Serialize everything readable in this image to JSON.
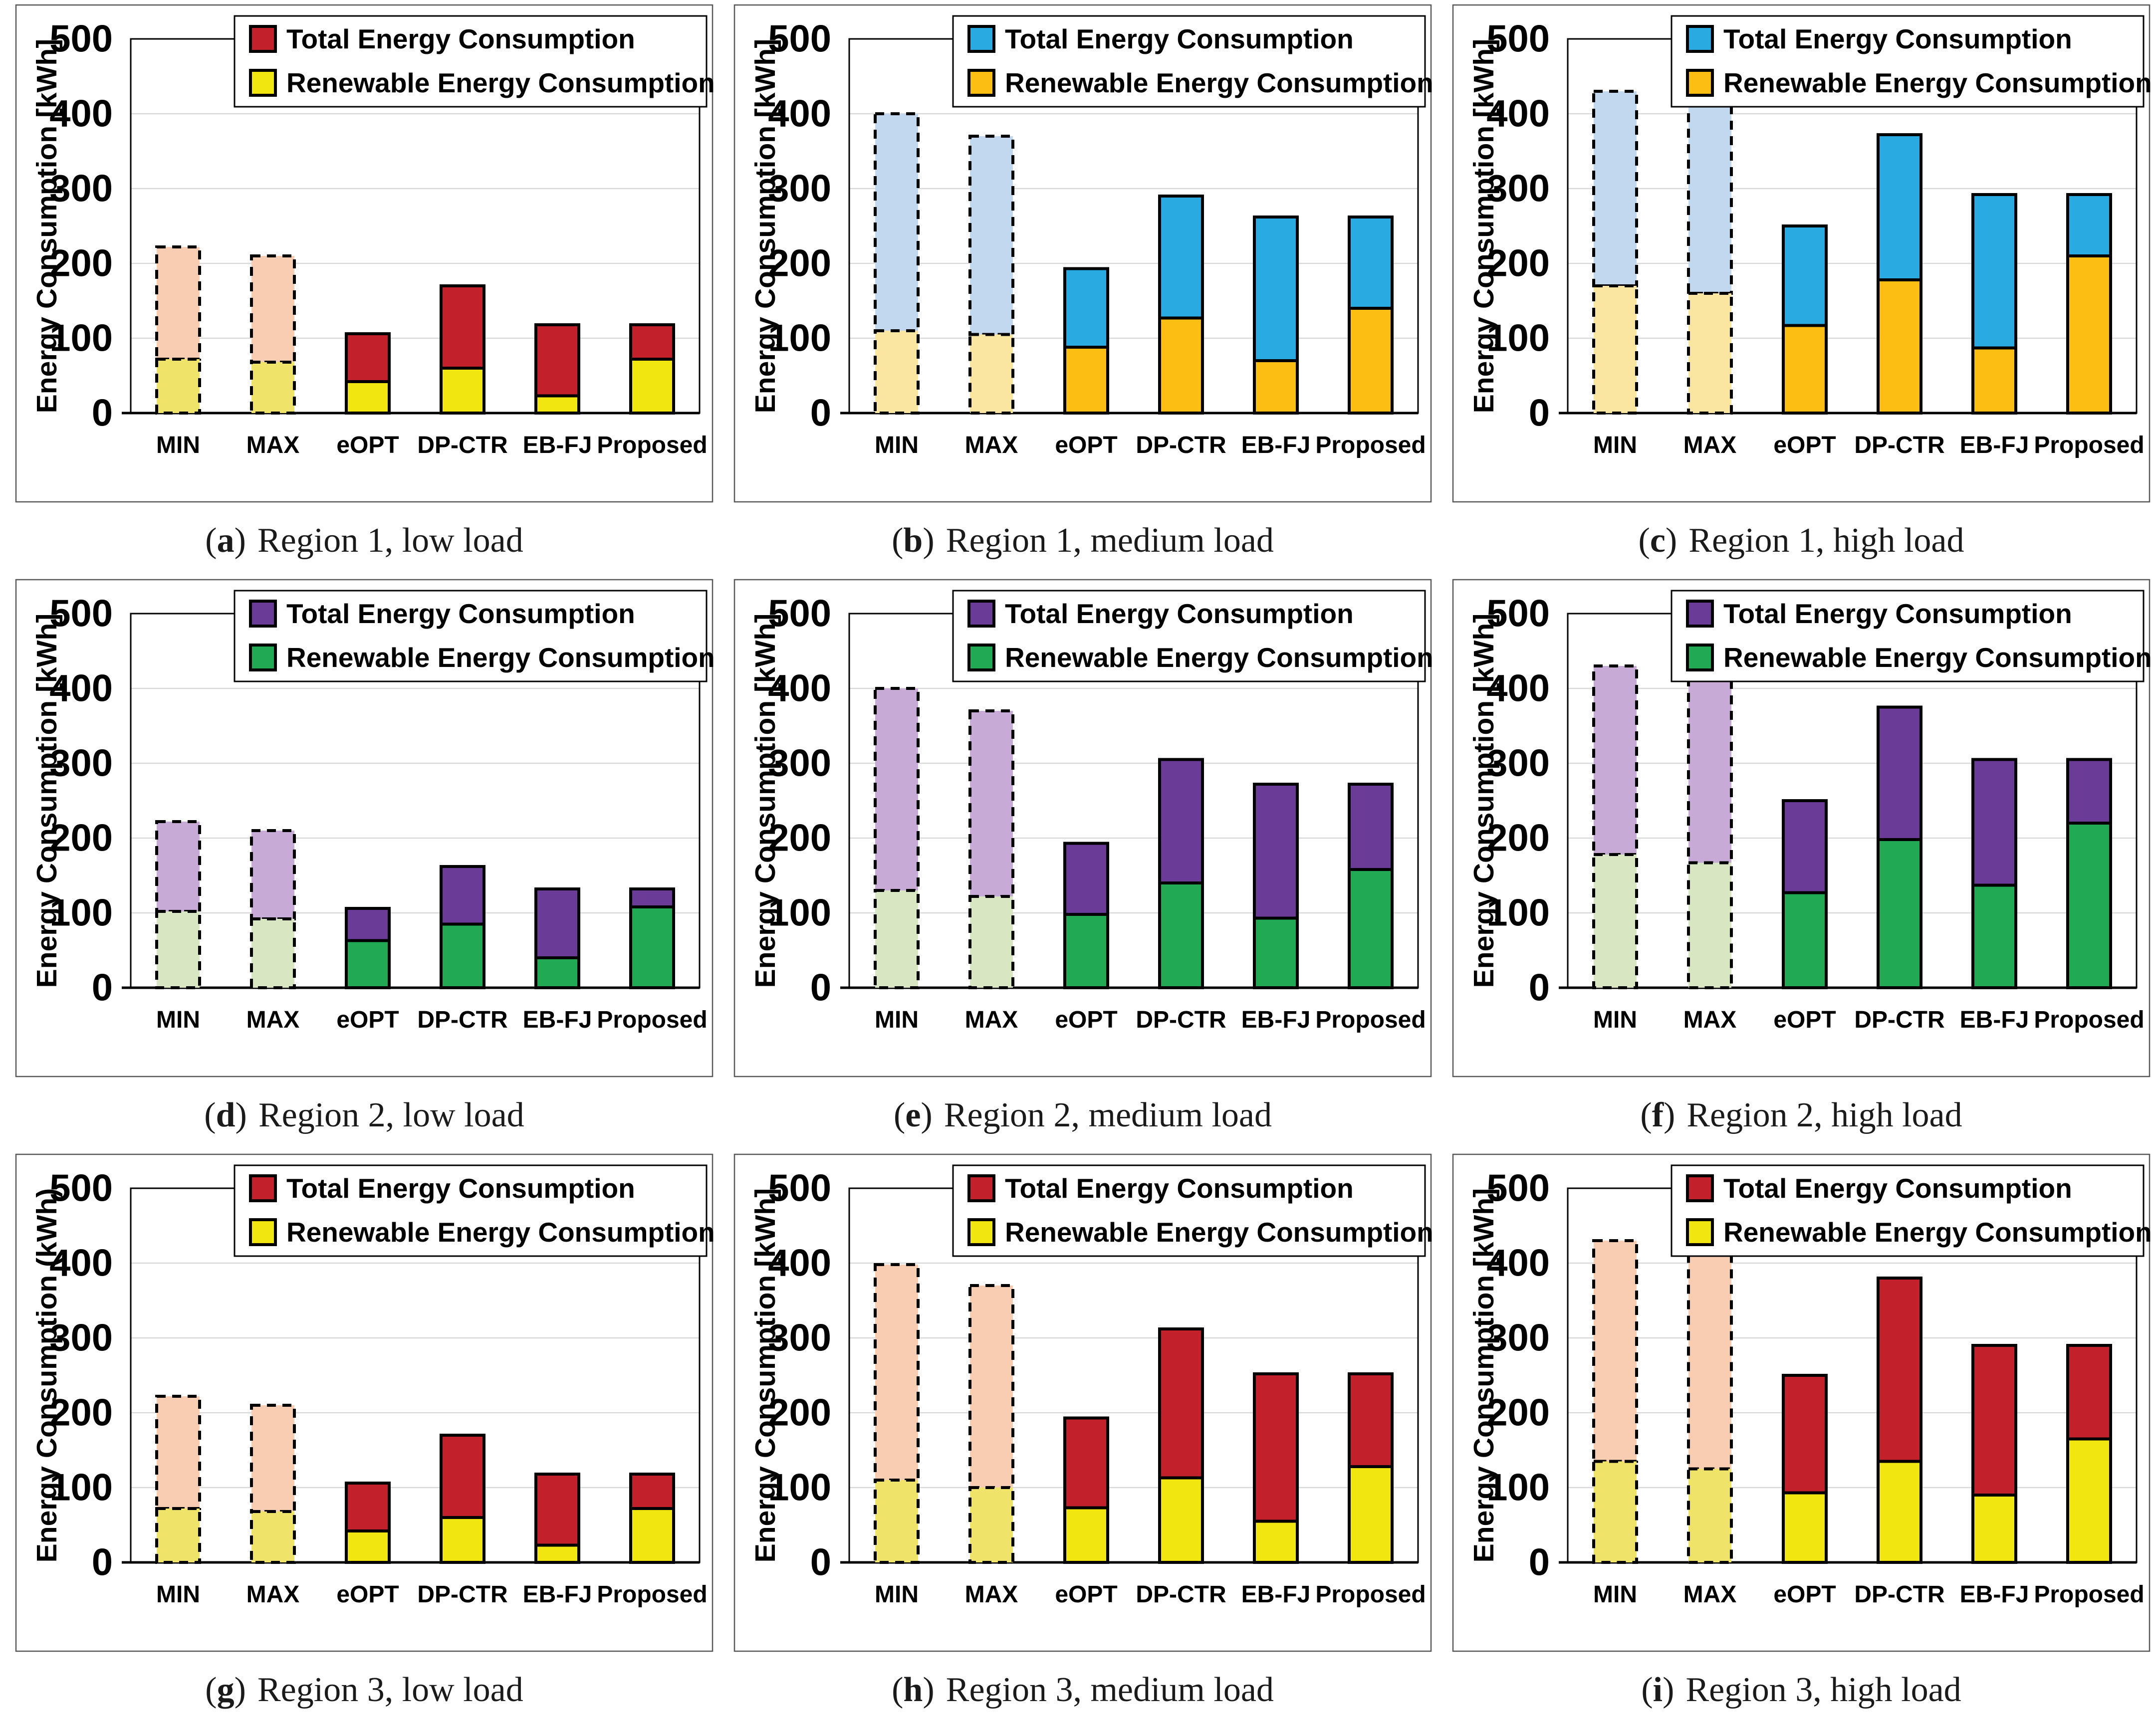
{
  "figure": {
    "description": "Energy consumption comparison across three regions and three load levels",
    "x_axis_categories": [
      "MIN",
      "MAX",
      "eOPT",
      "DP-CTR",
      "EB-FJ",
      "Proposed"
    ],
    "legend_labels": [
      "Total Energy Consumption",
      "Renewable Energy Consumption"
    ],
    "grid_color": "#D9D9D9"
  },
  "chart_data": [
    {
      "type": "bar",
      "stacked": true,
      "id": "a",
      "caption": {
        "pre": "(",
        "letter": "a",
        "post": ")",
        "label": "Region 1, low load"
      },
      "ylabel": "Energy Consumption [kWh]",
      "ylim": [
        0,
        500
      ],
      "yticks": [
        0,
        100,
        200,
        300,
        400,
        500
      ],
      "categories": [
        "MIN",
        "MAX",
        "eOPT",
        "DP-CTR",
        "EB-FJ",
        "Proposed"
      ],
      "dashed": [
        true,
        true,
        false,
        false,
        false,
        false
      ],
      "legend": [
        "Total Energy Consumption",
        "Renewable Energy Consumption"
      ],
      "legend_position": "top-right-inside",
      "grid": "horizontal",
      "colors": {
        "total": "#C2212B",
        "renewable": "#F2E611",
        "total_faded": "#F8CDB2",
        "renewable_faded": "#F0E36A"
      },
      "series": [
        {
          "name": "Total Energy Consumption",
          "values": [
            222,
            210,
            106,
            170,
            118,
            118
          ]
        },
        {
          "name": "Renewable Energy Consumption",
          "values": [
            72,
            68,
            42,
            60,
            23,
            72
          ]
        }
      ]
    },
    {
      "type": "bar",
      "stacked": true,
      "id": "b",
      "caption": {
        "pre": "(",
        "letter": "b",
        "post": ")",
        "label": "Region 1, medium load"
      },
      "ylabel": "Energy Consumption [kWh]",
      "ylim": [
        0,
        500
      ],
      "yticks": [
        0,
        100,
        200,
        300,
        400,
        500
      ],
      "categories": [
        "MIN",
        "MAX",
        "eOPT",
        "DP-CTR",
        "EB-FJ",
        "Proposed"
      ],
      "dashed": [
        true,
        true,
        false,
        false,
        false,
        false
      ],
      "legend": [
        "Total Energy Consumption",
        "Renewable Energy Consumption"
      ],
      "legend_position": "top-right-inside",
      "grid": "horizontal",
      "colors": {
        "total": "#29ABE2",
        "renewable": "#FDBE14",
        "total_faded": "#C2D8EF",
        "renewable_faded": "#FAE5A1"
      },
      "series": [
        {
          "name": "Total Energy Consumption",
          "values": [
            400,
            370,
            193,
            290,
            262,
            262
          ]
        },
        {
          "name": "Renewable Energy Consumption",
          "values": [
            110,
            105,
            88,
            127,
            70,
            140
          ]
        }
      ]
    },
    {
      "type": "bar",
      "stacked": true,
      "id": "c",
      "caption": {
        "pre": "(",
        "letter": "c",
        "post": ")",
        "label": "Region 1, high load"
      },
      "ylabel": "Energy Consumption [kWh]",
      "ylim": [
        0,
        500
      ],
      "yticks": [
        0,
        100,
        200,
        300,
        400,
        500
      ],
      "categories": [
        "MIN",
        "MAX",
        "eOPT",
        "DP-CTR",
        "EB-FJ",
        "Proposed"
      ],
      "dashed": [
        true,
        true,
        false,
        false,
        false,
        false
      ],
      "legend": [
        "Total Energy Consumption",
        "Renewable Energy Consumption"
      ],
      "legend_position": "top-right-inside",
      "grid": "horizontal",
      "colors": {
        "total": "#29ABE2",
        "renewable": "#FDBE14",
        "total_faded": "#C2D8EF",
        "renewable_faded": "#FAE5A1"
      },
      "series": [
        {
          "name": "Total Energy Consumption",
          "values": [
            430,
            416,
            250,
            372,
            292,
            292
          ]
        },
        {
          "name": "Renewable Energy Consumption",
          "values": [
            170,
            160,
            117,
            178,
            87,
            210
          ]
        }
      ]
    },
    {
      "type": "bar",
      "stacked": true,
      "id": "d",
      "caption": {
        "pre": "(",
        "letter": "d",
        "post": ")",
        "label": "Region 2, low load"
      },
      "ylabel": "Energy Consumption [kWh]",
      "ylim": [
        0,
        500
      ],
      "yticks": [
        0,
        100,
        200,
        300,
        400,
        500
      ],
      "categories": [
        "MIN",
        "MAX",
        "eOPT",
        "DP-CTR",
        "EB-FJ",
        "Proposed"
      ],
      "dashed": [
        true,
        true,
        false,
        false,
        false,
        false
      ],
      "legend": [
        "Total Energy Consumption",
        "Renewable Energy Consumption"
      ],
      "legend_position": "top-right-inside",
      "grid": "horizontal",
      "colors": {
        "total": "#6A3C98",
        "renewable": "#21A953",
        "total_faded": "#C7AAD6",
        "renewable_faded": "#D8E7C1"
      },
      "series": [
        {
          "name": "Total Energy Consumption",
          "values": [
            222,
            210,
            106,
            162,
            132,
            132
          ]
        },
        {
          "name": "Renewable Energy Consumption",
          "values": [
            102,
            92,
            63,
            85,
            40,
            108
          ]
        }
      ]
    },
    {
      "type": "bar",
      "stacked": true,
      "id": "e",
      "caption": {
        "pre": "(",
        "letter": "e",
        "post": ")",
        "label": "Region 2, medium load"
      },
      "ylabel": "Energy Consumption [kWh]",
      "ylim": [
        0,
        500
      ],
      "yticks": [
        0,
        100,
        200,
        300,
        400,
        500
      ],
      "categories": [
        "MIN",
        "MAX",
        "eOPT",
        "DP-CTR",
        "EB-FJ",
        "Proposed"
      ],
      "dashed": [
        true,
        true,
        false,
        false,
        false,
        false
      ],
      "legend": [
        "Total Energy Consumption",
        "Renewable Energy Consumption"
      ],
      "legend_position": "top-right-inside",
      "grid": "horizontal",
      "colors": {
        "total": "#6A3C98",
        "renewable": "#21A953",
        "total_faded": "#C7AAD6",
        "renewable_faded": "#D8E7C1"
      },
      "series": [
        {
          "name": "Total Energy Consumption",
          "values": [
            400,
            370,
            193,
            305,
            272,
            272
          ]
        },
        {
          "name": "Renewable Energy Consumption",
          "values": [
            130,
            122,
            98,
            140,
            93,
            158
          ]
        }
      ]
    },
    {
      "type": "bar",
      "stacked": true,
      "id": "f",
      "caption": {
        "pre": "(",
        "letter": "f",
        "post": ")",
        "label": "Region 2, high load"
      },
      "ylabel": "Energy Consumption [kWh]",
      "ylim": [
        0,
        500
      ],
      "yticks": [
        0,
        100,
        200,
        300,
        400,
        500
      ],
      "categories": [
        "MIN",
        "MAX",
        "eOPT",
        "DP-CTR",
        "EB-FJ",
        "Proposed"
      ],
      "dashed": [
        true,
        true,
        false,
        false,
        false,
        false
      ],
      "legend": [
        "Total Energy Consumption",
        "Renewable Energy Consumption"
      ],
      "legend_position": "top-right-inside",
      "grid": "horizontal",
      "colors": {
        "total": "#6A3C98",
        "renewable": "#21A953",
        "total_faded": "#C7AAD6",
        "renewable_faded": "#D8E7C1"
      },
      "series": [
        {
          "name": "Total Energy Consumption",
          "values": [
            430,
            416,
            250,
            375,
            305,
            305
          ]
        },
        {
          "name": "Renewable Energy Consumption",
          "values": [
            178,
            167,
            127,
            198,
            137,
            220
          ]
        }
      ]
    },
    {
      "type": "bar",
      "stacked": true,
      "id": "g",
      "caption": {
        "pre": "(",
        "letter": "g",
        "post": ")",
        "label": "Region 3, low load"
      },
      "ylabel": "Energy Consumption (kWh)",
      "ylim": [
        0,
        500
      ],
      "yticks": [
        0,
        100,
        200,
        300,
        400,
        500
      ],
      "categories": [
        "MIN",
        "MAX",
        "eOPT",
        "DP-CTR",
        "EB-FJ",
        "Proposed"
      ],
      "dashed": [
        true,
        true,
        false,
        false,
        false,
        false
      ],
      "legend": [
        "Total Energy Consumption",
        "Renewable Energy Consumption"
      ],
      "legend_position": "top-right-inside",
      "grid": "horizontal",
      "colors": {
        "total": "#C2212B",
        "renewable": "#F2E611",
        "total_faded": "#F8CDB2",
        "renewable_faded": "#F0E36A"
      },
      "series": [
        {
          "name": "Total Energy Consumption",
          "values": [
            222,
            210,
            106,
            170,
            118,
            118
          ]
        },
        {
          "name": "Renewable Energy Consumption",
          "values": [
            72,
            68,
            42,
            60,
            23,
            72
          ]
        }
      ]
    },
    {
      "type": "bar",
      "stacked": true,
      "id": "h",
      "caption": {
        "pre": "(",
        "letter": "h",
        "post": ")",
        "label": "Region 3, medium load"
      },
      "ylabel": "Energy Consumption [kWh]",
      "ylim": [
        0,
        500
      ],
      "yticks": [
        0,
        100,
        200,
        300,
        400,
        500
      ],
      "categories": [
        "MIN",
        "MAX",
        "eOPT",
        "DP-CTR",
        "EB-FJ",
        "Proposed"
      ],
      "dashed": [
        true,
        true,
        false,
        false,
        false,
        false
      ],
      "legend": [
        "Total Energy Consumption",
        "Renewable Energy Consumption"
      ],
      "legend_position": "top-right-inside",
      "grid": "horizontal",
      "colors": {
        "total": "#C2212B",
        "renewable": "#F2E611",
        "total_faded": "#F8CDB2",
        "renewable_faded": "#F0E36A"
      },
      "series": [
        {
          "name": "Total Energy Consumption",
          "values": [
            398,
            370,
            193,
            312,
            252,
            252
          ]
        },
        {
          "name": "Renewable Energy Consumption",
          "values": [
            110,
            100,
            73,
            113,
            55,
            128
          ]
        }
      ]
    },
    {
      "type": "bar",
      "stacked": true,
      "id": "i",
      "caption": {
        "pre": "(",
        "letter": "i",
        "post": ")",
        "label": "Region 3, high load"
      },
      "ylabel": "Energy Consumption [kWh]",
      "ylim": [
        0,
        500
      ],
      "yticks": [
        0,
        100,
        200,
        300,
        400,
        500
      ],
      "categories": [
        "MIN",
        "MAX",
        "eOPT",
        "DP-CTR",
        "EB-FJ",
        "Proposed"
      ],
      "dashed": [
        true,
        true,
        false,
        false,
        false,
        false
      ],
      "legend": [
        "Total Energy Consumption",
        "Renewable Energy Consumption"
      ],
      "legend_position": "top-right-inside",
      "grid": "horizontal",
      "colors": {
        "total": "#C2212B",
        "renewable": "#F2E611",
        "total_faded": "#F8CDB2",
        "renewable_faded": "#F0E36A"
      },
      "series": [
        {
          "name": "Total Energy Consumption",
          "values": [
            430,
            417,
            250,
            380,
            290,
            290
          ]
        },
        {
          "name": "Renewable Energy Consumption",
          "values": [
            135,
            125,
            93,
            135,
            90,
            165
          ]
        }
      ]
    }
  ]
}
